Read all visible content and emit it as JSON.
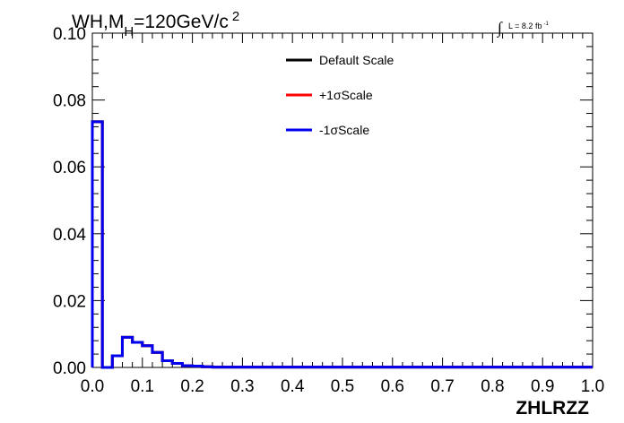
{
  "chart_data": {
    "type": "line",
    "title_parts": {
      "main": "WH,M",
      "sub": "H",
      "rest": "=120GeV/c",
      "sup": "2"
    },
    "lumi": {
      "symbol": "∫",
      "text": "L = 8.2 fb",
      "sup": "-1"
    },
    "xlabel": "ZHLRZZ",
    "ylabel": "",
    "xlim": [
      0.0,
      1.0
    ],
    "ylim": [
      0.0,
      0.1
    ],
    "x_tick_labels": [
      "0.0",
      "0.1",
      "0.2",
      "0.3",
      "0.4",
      "0.5",
      "0.6",
      "0.7",
      "0.8",
      "0.9",
      "1.0"
    ],
    "y_tick_labels": [
      "0.00",
      "0.02",
      "0.04",
      "0.06",
      "0.08",
      "0.10"
    ],
    "bin_edges": [
      0.0,
      0.02,
      0.04,
      0.06,
      0.08,
      0.1,
      0.12,
      0.14,
      0.16,
      0.18,
      0.2,
      0.22,
      0.24,
      1.0
    ],
    "series": [
      {
        "name": "Default Scale",
        "color": "#000000",
        "values": [
          0.0735,
          0.0,
          0.0035,
          0.009,
          0.0075,
          0.0065,
          0.0045,
          0.002,
          0.0012,
          0.0005,
          0.0004,
          0.0002,
          0.0001
        ]
      },
      {
        "name": "+1σScale",
        "color": "#ff0000",
        "values": [
          0.0735,
          0.0,
          0.0035,
          0.009,
          0.0075,
          0.0065,
          0.0045,
          0.002,
          0.0012,
          0.0005,
          0.0004,
          0.0002,
          0.0001
        ]
      },
      {
        "name": "-1σScale",
        "color": "#0000ee",
        "values": [
          0.0735,
          0.0,
          0.0035,
          0.009,
          0.0075,
          0.0065,
          0.0045,
          0.002,
          0.0012,
          0.0005,
          0.0004,
          0.0002,
          0.0001
        ]
      }
    ],
    "legend_position": "top-center",
    "grid": false
  }
}
